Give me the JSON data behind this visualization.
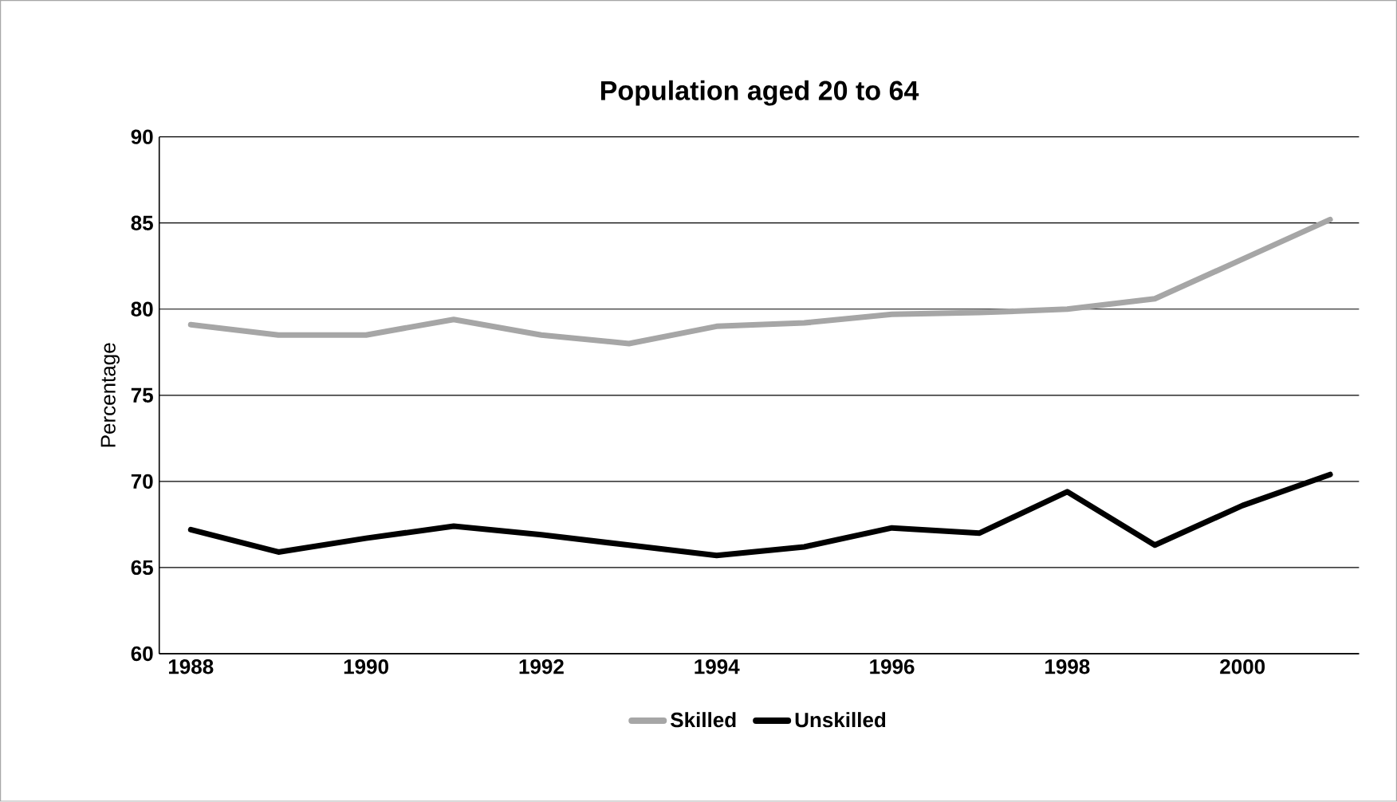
{
  "chart_data": {
    "type": "line",
    "title": "Population aged 20 to 64",
    "ylabel": "Percentage",
    "categories": [
      "1988",
      null,
      "1990",
      null,
      "1992",
      null,
      "1994",
      null,
      "1996",
      null,
      "1998",
      null,
      "2000",
      null
    ],
    "series": [
      {
        "name": "Skilled",
        "color": "#a6a6a6",
        "values": [
          79.1,
          78.5,
          78.5,
          79.4,
          78.5,
          78.0,
          79.0,
          79.2,
          79.7,
          79.8,
          80.0,
          80.6,
          82.9,
          85.2
        ]
      },
      {
        "name": "Unskilled",
        "color": "#000000",
        "values": [
          67.2,
          65.9,
          66.7,
          67.4,
          66.9,
          66.3,
          65.7,
          66.2,
          67.3,
          67.0,
          69.4,
          66.3,
          68.6,
          70.4
        ]
      }
    ],
    "ylim": [
      60,
      90
    ],
    "yticks": [
      60,
      65,
      70,
      75,
      80,
      85,
      90
    ],
    "grid": "y",
    "legend": "bottom",
    "marker": "none",
    "line_style": "solid"
  }
}
